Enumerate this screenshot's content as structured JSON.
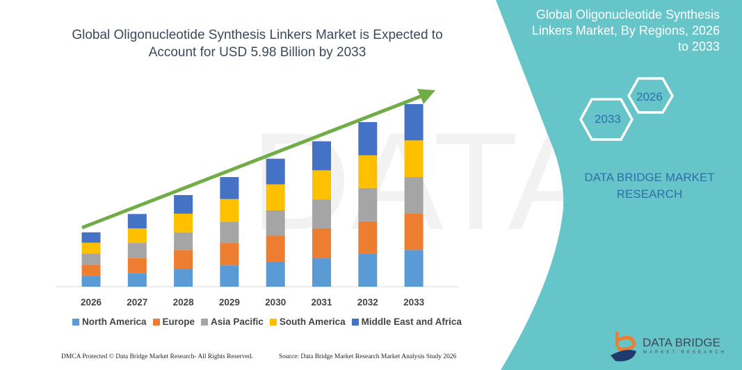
{
  "title": "Global Oligonucleotide Synthesis Linkers Market is Expected to Account for USD 5.98 Billion by 2033",
  "side_panel": {
    "title": "Global Oligonucleotide Synthesis Linkers Market, By Regions, 2026 to 2033",
    "hex_start": "2026",
    "hex_end": "2033",
    "brand": "DATA BRIDGE MARKET RESEARCH",
    "logo_text": "DATA BRIDGE",
    "logo_sub": "MARKET RESEARCH",
    "panel_color": "#66c5c9"
  },
  "footer": {
    "copyright": "DMCA Protected © Data Bridge Market Research-  All Rights Reserved.",
    "source": "Source: Data Bridge Market Research  Market Analysis Study 2026"
  },
  "chart_data": {
    "type": "bar",
    "stacked": true,
    "title": "Global Oligonucleotide Synthesis Linkers Market is Expected to Account for USD 5.98 Billion by 2033",
    "xlabel": "",
    "ylabel": "",
    "y_axis_visible": false,
    "grid": false,
    "legend_position": "bottom",
    "trend_arrow": true,
    "categories": [
      "2026",
      "2027",
      "2028",
      "2029",
      "2030",
      "2031",
      "2032",
      "2033"
    ],
    "series": [
      {
        "name": "North America",
        "color": "#5b9bd5",
        "values": [
          0.36,
          0.45,
          0.59,
          0.7,
          0.82,
          0.93,
          1.07,
          1.2
        ]
      },
      {
        "name": "Europe",
        "color": "#ed7d31",
        "values": [
          0.36,
          0.49,
          0.61,
          0.73,
          0.85,
          0.98,
          1.07,
          1.2
        ]
      },
      {
        "name": "Asia Pacific",
        "color": "#a5a5a5",
        "values": [
          0.36,
          0.49,
          0.58,
          0.7,
          0.83,
          0.95,
          1.09,
          1.19
        ]
      },
      {
        "name": "South America",
        "color": "#ffc000",
        "values": [
          0.36,
          0.48,
          0.61,
          0.74,
          0.85,
          0.95,
          1.07,
          1.2
        ]
      },
      {
        "name": "Middle East and Africa",
        "color": "#4472c4",
        "values": [
          0.34,
          0.47,
          0.61,
          0.72,
          0.84,
          0.95,
          1.09,
          1.19
        ]
      }
    ],
    "arrow_color": "#70ad47"
  }
}
